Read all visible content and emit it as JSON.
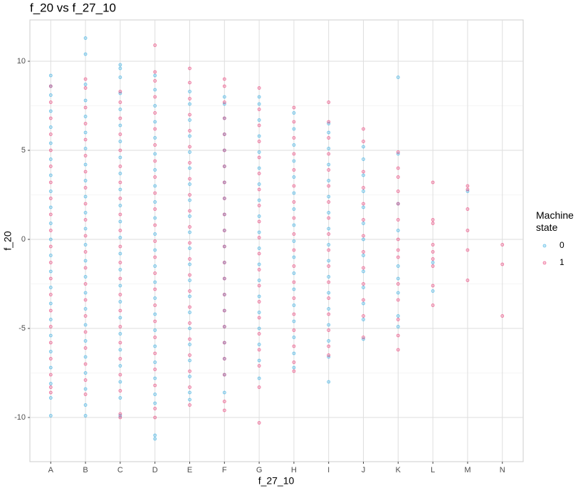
{
  "chart_data": {
    "type": "strip",
    "title": "f_20 vs f_27_10",
    "x_label": "f_27_10",
    "y_label": "f_20",
    "legend_title": "Machine state",
    "categories": [
      "A",
      "B",
      "C",
      "D",
      "E",
      "F",
      "G",
      "H",
      "I",
      "J",
      "K",
      "L",
      "M",
      "N"
    ],
    "ylim": [
      -12.48,
      12.32
    ],
    "yticks": [
      -10,
      -5,
      0,
      5,
      10
    ],
    "y_minor_ticks": [
      -7.5,
      -2.5,
      2.5,
      7.5
    ],
    "grid": true,
    "series": [
      {
        "name": "0",
        "color": "#29a8e0",
        "values": [
          [
            9.2,
            8.6,
            8.1,
            7.2,
            6.3,
            5.4,
            4.5,
            3.6,
            2.7,
            1.8,
            0.9,
            0,
            -0.9,
            -1.8,
            -2.7,
            -3.6,
            -4.5,
            -5.4,
            -6.3,
            -7.2,
            -8.1,
            -8.9,
            -9.9
          ],
          [
            11.3,
            10.4,
            8.7,
            7.8,
            6.9,
            6.0,
            5.1,
            4.2,
            3.3,
            2.4,
            1.5,
            0.6,
            -0.3,
            -1.2,
            -2.1,
            -3.0,
            -3.9,
            -4.8,
            -5.7,
            -6.6,
            -7.5,
            -8.4,
            -9.3,
            -9.9
          ],
          [
            9.8,
            9.6,
            9.1,
            8.2,
            7.3,
            6.4,
            5.5,
            4.6,
            3.7,
            2.8,
            1.9,
            1.0,
            0.1,
            -0.8,
            -1.7,
            -2.6,
            -3.5,
            -4.4,
            -5.3,
            -6.2,
            -7.1,
            -8.0,
            -8.9,
            -9.9
          ],
          [
            9.2,
            8.4,
            7.5,
            6.6,
            5.7,
            4.8,
            3.9,
            3.0,
            2.1,
            1.2,
            0.3,
            -0.6,
            -1.5,
            -2.4,
            -3.3,
            -4.2,
            -5.1,
            -6.0,
            -6.9,
            -7.8,
            -8.7,
            -9.2,
            -11.0,
            -11.2
          ],
          [
            8.3,
            7.6,
            6.7,
            5.8,
            4.9,
            4.0,
            3.1,
            2.2,
            1.3,
            0.4,
            -0.5,
            -1.4,
            -2.3,
            -3.2,
            -4.1,
            -5.0,
            -5.9,
            -6.8,
            -7.7,
            -8.6,
            -9.0
          ],
          [
            8.0,
            7.6,
            6.8,
            5.9,
            5.0,
            4.1,
            3.2,
            2.3,
            1.4,
            0.5,
            -0.4,
            -1.3,
            -2.2,
            -3.1,
            -4.0,
            -4.9,
            -5.8,
            -6.7,
            -7.6,
            -8.6
          ],
          [
            8.0,
            7.6,
            6.7,
            5.8,
            4.9,
            4.0,
            3.1,
            2.2,
            1.3,
            0.4,
            -0.5,
            -1.4,
            -2.3,
            -3.2,
            -4.1,
            -5.0,
            -5.9,
            -6.8,
            -7.8
          ],
          [
            7.1,
            6.2,
            5.3,
            4.4,
            3.5,
            2.6,
            1.7,
            0.8,
            -0.1,
            -1.0,
            -1.9,
            -2.8,
            -3.7,
            -4.6,
            -5.5,
            -6.4,
            -7.2
          ],
          [
            6.5,
            6.0,
            5.1,
            4.2,
            3.3,
            2.4,
            1.5,
            0.6,
            -0.3,
            -1.2,
            -2.1,
            -3.0,
            -3.9,
            -4.8,
            -5.7,
            -6.6,
            -8.0
          ],
          [
            5.2,
            4.5,
            3.6,
            2.7,
            1.8,
            0.9,
            0,
            -0.9,
            -1.8,
            -2.7,
            -3.6,
            -4.5,
            -5.6
          ],
          [
            9.1,
            4.8,
            2.0,
            0.5,
            -1.5,
            -2.2,
            -3.0,
            -4.3,
            -4.9
          ],
          [
            -1.3,
            -2.9
          ],
          [
            2.7
          ],
          []
        ]
      },
      {
        "name": "1",
        "color": "#e8336e",
        "values": [
          [
            8.6,
            7.7,
            6.8,
            5.9,
            5.0,
            4.1,
            3.2,
            2.3,
            1.4,
            0.5,
            -0.4,
            -1.3,
            -2.2,
            -3.1,
            -4.0,
            -4.9,
            -5.8,
            -6.7,
            -7.6,
            -8.3,
            -8.6
          ],
          [
            9.0,
            8.5,
            7.4,
            6.5,
            5.6,
            4.7,
            3.8,
            2.9,
            2.0,
            1.1,
            0.2,
            -0.7,
            -1.6,
            -2.5,
            -3.4,
            -4.3,
            -5.2,
            -6.1,
            -7.0,
            -7.9,
            -8.7
          ],
          [
            8.3,
            7.7,
            6.8,
            5.9,
            5.0,
            4.1,
            3.2,
            2.3,
            1.4,
            0.5,
            -0.4,
            -1.3,
            -2.2,
            -3.1,
            -4.0,
            -4.9,
            -5.8,
            -6.7,
            -7.6,
            -8.5,
            -9.8,
            -10.0
          ],
          [
            10.9,
            9.4,
            8.9,
            8.0,
            7.1,
            6.2,
            5.3,
            4.4,
            3.5,
            2.6,
            1.7,
            0.8,
            -0.1,
            -1.0,
            -1.9,
            -2.8,
            -3.7,
            -4.6,
            -5.5,
            -6.4,
            -7.3,
            -8.2,
            -9.5,
            -10.0
          ],
          [
            9.6,
            8.8,
            7.9,
            7.0,
            6.1,
            5.2,
            4.3,
            3.4,
            2.5,
            1.6,
            0.7,
            -0.2,
            -1.1,
            -2.0,
            -2.9,
            -3.8,
            -4.7,
            -5.6,
            -6.5,
            -7.4,
            -8.3,
            -9.3
          ],
          [
            9.0,
            8.6,
            7.7,
            6.8,
            5.9,
            5.0,
            4.1,
            3.2,
            2.3,
            1.4,
            0.5,
            -0.4,
            -1.3,
            -2.2,
            -3.1,
            -4.0,
            -4.9,
            -5.8,
            -6.7,
            -7.6,
            -9.1,
            -9.6
          ],
          [
            8.5,
            7.3,
            6.4,
            5.5,
            4.6,
            3.7,
            2.8,
            1.9,
            1.0,
            0.1,
            -0.8,
            -1.7,
            -2.6,
            -3.5,
            -4.4,
            -5.3,
            -6.2,
            -7.1,
            -8.3,
            -10.3
          ],
          [
            7.4,
            6.6,
            5.7,
            4.8,
            3.9,
            3.0,
            2.1,
            1.2,
            0.3,
            -0.6,
            -1.5,
            -2.4,
            -3.3,
            -4.2,
            -5.1,
            -6.0,
            -6.9,
            -7.4
          ],
          [
            7.7,
            6.6,
            5.7,
            4.8,
            3.9,
            3.0,
            2.1,
            1.2,
            0.3,
            -0.6,
            -1.5,
            -2.4,
            -3.3,
            -4.2,
            -5.1,
            -6.0,
            -6.5
          ],
          [
            6.2,
            5.5,
            3.8,
            2.9,
            2.0,
            1.1,
            0.2,
            -0.7,
            -1.6,
            -2.5,
            -3.4,
            -4.3,
            -5.5
          ],
          [
            4.9,
            4.0,
            3.5,
            2.7,
            2.0,
            1.1,
            0.0,
            -0.6,
            -1.0,
            -2.5,
            -3.4,
            -4.5,
            -5.4,
            -6.2
          ],
          [
            3.2,
            1.1,
            0.9,
            -0.3,
            -0.7,
            -1.1,
            -1.5,
            -2.6,
            -3.7
          ],
          [
            3.0,
            2.8,
            1.7,
            0.5,
            -0.6,
            -2.3
          ],
          [
            -0.3,
            -1.4,
            -4.3
          ]
        ]
      }
    ]
  }
}
